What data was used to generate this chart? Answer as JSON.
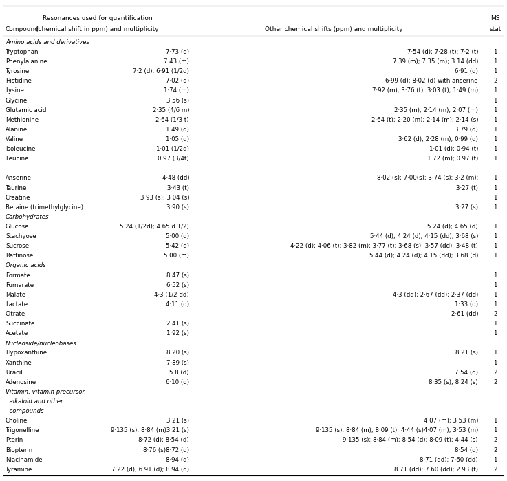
{
  "col_headers_line1": [
    "",
    "Resonances used for quantification",
    "",
    "MS"
  ],
  "col_headers_line2": [
    "Compound",
    "(chemical shift in ppm) and multiplicity",
    "Other chemical shifts (ppm) and multiplicity",
    "stat"
  ],
  "rows": [
    {
      "type": "category",
      "text": "Amino acids and derivatives"
    },
    {
      "type": "data",
      "compound": "Tryptophan",
      "quant": "7·73 (d)",
      "other": "7·54 (d); 7·28 (t); 7·2 (t)",
      "ms": "1"
    },
    {
      "type": "data",
      "compound": "Phenylalanine",
      "quant": "7·43 (m)",
      "other": "7·39 (m); 7·35 (m); 3·14 (dd)",
      "ms": "1"
    },
    {
      "type": "data",
      "compound": "Tyrosine",
      "quant": "7·2 (d); 6·91 (1/2d)",
      "other": "6·91 (d)",
      "ms": "1"
    },
    {
      "type": "data",
      "compound": "Histidine",
      "quant": "7·02 (d)",
      "other": "6·99 (d); 8·02 (d) with anserine",
      "ms": "2"
    },
    {
      "type": "data",
      "compound": "Lysine",
      "quant": "1·74 (m)",
      "other": "7·92 (m); 3·76 (t); 3·03 (t); 1·49 (m)",
      "ms": "1"
    },
    {
      "type": "data",
      "compound": "Glycine",
      "quant": "3·56 (s)",
      "other": "",
      "ms": "1"
    },
    {
      "type": "data",
      "compound": "Glutamic acid",
      "quant": "2·35 (4/6 m)",
      "other": "2·35 (m); 2·14 (m); 2·07 (m)",
      "ms": "1"
    },
    {
      "type": "data",
      "compound": "Methionine",
      "quant": "2·64 (1/3 t)",
      "other": "2·64 (t); 2·20 (m); 2·14 (m); 2·14 (s)",
      "ms": "1"
    },
    {
      "type": "data",
      "compound": "Alanine",
      "quant": "1·49 (d)",
      "other": "3·79 (q)",
      "ms": "1"
    },
    {
      "type": "data",
      "compound": "Valine",
      "quant": "1·05 (d)",
      "other": "3·62 (d); 2·28 (m); 0·99 (d)",
      "ms": "1"
    },
    {
      "type": "data",
      "compound": "Isoleucine",
      "quant": "1·01 (1/2d)",
      "other": "1·01 (d); 0·94 (t)",
      "ms": "1"
    },
    {
      "type": "data",
      "compound": "Leucine",
      "quant": "0·97 (3/4t)",
      "other": "1·72 (m); 0·97 (t)",
      "ms": "1"
    },
    {
      "type": "blank"
    },
    {
      "type": "data",
      "compound": "Anserine",
      "quant": "4·48 (dd)",
      "other": "8·02 (s); 7·00(s); 3·74 (s); 3·2 (m);",
      "ms": "1"
    },
    {
      "type": "data",
      "compound": "Taurine",
      "quant": "3·43 (t)",
      "other": "3·27 (t)",
      "ms": "1"
    },
    {
      "type": "data",
      "compound": "Creatine",
      "quant": "3·93 (s); 3·04 (s)",
      "other": "",
      "ms": "1"
    },
    {
      "type": "data",
      "compound": "Betaine (trimethylglycine)",
      "quant": "3·90 (s)",
      "other": "3·27 (s)",
      "ms": "1"
    },
    {
      "type": "category",
      "text": "Carbohydrates"
    },
    {
      "type": "data",
      "compound": "Glucose",
      "quant": "5·24 (1/2d); 4·65 d 1/2)",
      "other": "5·24 (d); 4·65 (d)",
      "ms": "1"
    },
    {
      "type": "data",
      "compound": "Stachyose",
      "quant": "5·00 (d)",
      "other": "5·44 (d); 4·24 (d); 4·15 (dd); 3·68 (s)",
      "ms": "1"
    },
    {
      "type": "data",
      "compound": "Sucrose",
      "quant": "5·42 (d)",
      "other": "4·22 (d); 4·06 (t); 3·82 (m); 3·77 (t); 3·68 (s); 3·57 (dd); 3·48 (t)",
      "ms": "1"
    },
    {
      "type": "data",
      "compound": "Raffinose",
      "quant": "5·00 (m)",
      "other": "5·44 (d); 4·24 (d); 4·15 (dd); 3·68 (d)",
      "ms": "1"
    },
    {
      "type": "category",
      "text": "Organic acids"
    },
    {
      "type": "data",
      "compound": "Formate",
      "quant": "8·47 (s)",
      "other": "",
      "ms": "1"
    },
    {
      "type": "data",
      "compound": "Fumarate",
      "quant": "6·52 (s)",
      "other": "",
      "ms": "1"
    },
    {
      "type": "data",
      "compound": "Malate",
      "quant": "4·3 (1/2 dd)",
      "other": "4·3 (dd); 2·67 (dd); 2·37 (dd)",
      "ms": "1"
    },
    {
      "type": "data",
      "compound": "Lactate",
      "quant": "4·11 (q)",
      "other": "1·33 (d)",
      "ms": "1"
    },
    {
      "type": "data",
      "compound": "Citrate",
      "quant": "",
      "other": "2·61 (dd)",
      "ms": "2"
    },
    {
      "type": "data",
      "compound": "Succinate",
      "quant": "2·41 (s)",
      "other": "",
      "ms": "1"
    },
    {
      "type": "data",
      "compound": "Acetate",
      "quant": "1·92 (s)",
      "other": "",
      "ms": "1"
    },
    {
      "type": "category",
      "text": "Nucleoside/nucleobases"
    },
    {
      "type": "data",
      "compound": "Hypoxanthine",
      "quant": "8·20 (s)",
      "other": "8·21 (s)",
      "ms": "1"
    },
    {
      "type": "data",
      "compound": "Xanthine",
      "quant": "7·89 (s)",
      "other": "",
      "ms": "1"
    },
    {
      "type": "data",
      "compound": "Uracil",
      "quant": "5·8 (d)",
      "other": "7·54 (d)",
      "ms": "2"
    },
    {
      "type": "data",
      "compound": "Adenosine",
      "quant": "6·10 (d)",
      "other": "8·35 (s); 8·24 (s)",
      "ms": "2"
    },
    {
      "type": "category",
      "text": "Vitamin, vitamin precursor,"
    },
    {
      "type": "category_indent",
      "text": "  alkaloid and other"
    },
    {
      "type": "category_indent",
      "text": "  compounds"
    },
    {
      "type": "data",
      "compound": "Choline",
      "quant": "3·21 (s)",
      "other": "4·07 (m); 3·53 (m)",
      "ms": "1"
    },
    {
      "type": "data",
      "compound": "Trigonelline",
      "quant": "9·135 (s); 8·84 (m)3·21 (s)",
      "other": "9·135 (s); 8·84 (m); 8·09 (t); 4·44 (s)4·07 (m); 3·53 (m)",
      "ms": "1"
    },
    {
      "type": "data",
      "compound": "Pterin",
      "quant": "8·72 (d); 8·54 (d)",
      "other": "9·135 (s); 8·84 (m); 8·54 (d); 8·09 (t); 4·44 (s)",
      "ms": "2"
    },
    {
      "type": "data",
      "compound": "Biopterin",
      "quant": "8·76 (s)8·72 (d)",
      "other": "8·54 (d)",
      "ms": "2"
    },
    {
      "type": "data",
      "compound": "Niacinamide",
      "quant": "8·94 (d)",
      "other": "8·71 (dd); 7·60 (dd)",
      "ms": "1"
    },
    {
      "type": "data",
      "compound": "Tyramine",
      "quant": "7·22 (d); 6·91 (d); 8·94 (d)",
      "other": "8·71 (dd); 7·60 (dd); 2·93 (t)",
      "ms": "2"
    }
  ],
  "text_color": "#000000",
  "bg_color": "#ffffff",
  "fontsize": 6.2,
  "header_fontsize": 6.5
}
